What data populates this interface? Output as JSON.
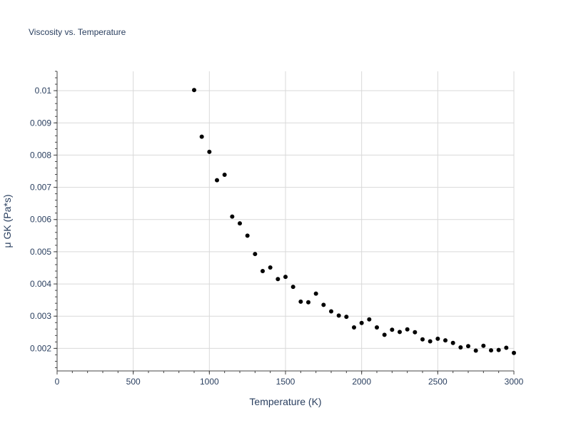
{
  "chart_data": {
    "type": "scatter",
    "title": "Viscosity vs. Temperature",
    "xlabel": "Temperature (K)",
    "ylabel": "μ GK (Pa*s)",
    "xlim": [
      0,
      3000
    ],
    "ylim": [
      0.0013,
      0.0106
    ],
    "grid": true,
    "legend": "none",
    "marker_color": "#000000",
    "x_ticks": [
      {
        "value": 0,
        "label": "0"
      },
      {
        "value": 500,
        "label": "500"
      },
      {
        "value": 1000,
        "label": "1000"
      },
      {
        "value": 1500,
        "label": "1500"
      },
      {
        "value": 2000,
        "label": "2000"
      },
      {
        "value": 2500,
        "label": "2500"
      },
      {
        "value": 3000,
        "label": "3000"
      }
    ],
    "y_ticks": [
      {
        "value": 0.002,
        "label": "0.002"
      },
      {
        "value": 0.003,
        "label": "0.003"
      },
      {
        "value": 0.004,
        "label": "0.004"
      },
      {
        "value": 0.005,
        "label": "0.005"
      },
      {
        "value": 0.006,
        "label": "0.006"
      },
      {
        "value": 0.007,
        "label": "0.007"
      },
      {
        "value": 0.008,
        "label": "0.008"
      },
      {
        "value": 0.009,
        "label": "0.009"
      },
      {
        "value": 0.01,
        "label": "0.01"
      }
    ],
    "x": [
      900,
      950,
      1000,
      1050,
      1100,
      1150,
      1200,
      1250,
      1300,
      1350,
      1400,
      1450,
      1500,
      1550,
      1600,
      1650,
      1700,
      1750,
      1800,
      1850,
      1900,
      1950,
      2000,
      2050,
      2100,
      2150,
      2200,
      2250,
      2300,
      2350,
      2400,
      2450,
      2500,
      2550,
      2600,
      2650,
      2700,
      2750,
      2800,
      2850,
      2900,
      2950,
      3000
    ],
    "y": [
      0.01002,
      0.00857,
      0.0081,
      0.00722,
      0.00739,
      0.00609,
      0.00588,
      0.0055,
      0.00493,
      0.0044,
      0.00451,
      0.00415,
      0.00422,
      0.00391,
      0.00345,
      0.00343,
      0.0037,
      0.00335,
      0.00315,
      0.00302,
      0.00298,
      0.00265,
      0.00279,
      0.0029,
      0.00265,
      0.00242,
      0.00258,
      0.00251,
      0.00259,
      0.0025,
      0.00228,
      0.00222,
      0.0023,
      0.00225,
      0.00217,
      0.00203,
      0.00207,
      0.00193,
      0.00208,
      0.00194,
      0.00195,
      0.00202,
      0.00186
    ]
  }
}
